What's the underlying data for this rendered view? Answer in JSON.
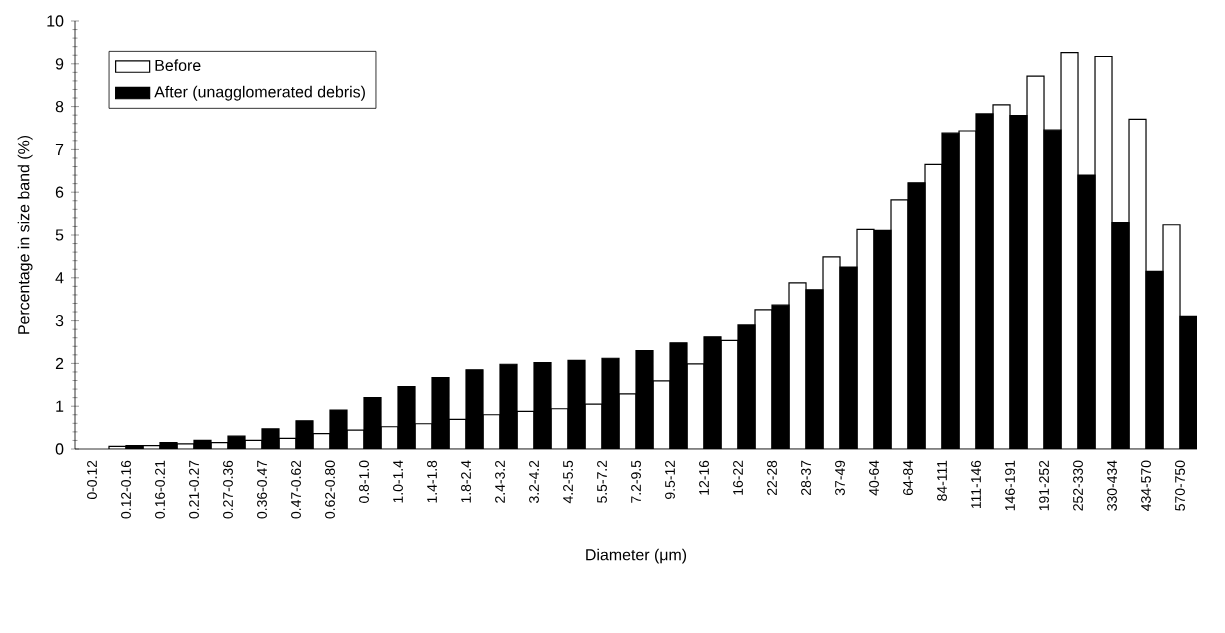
{
  "chart_data": {
    "type": "bar",
    "xlabel": "Diameter (μm)",
    "ylabel": "Percentage in size band (%)",
    "categories": [
      "0-0.12",
      "0.12-0.16",
      "0.16-0.21",
      "0.21-0.27",
      "0.27-0.36",
      "0.36-0.47",
      "0.47-0.62",
      "0.62-0.80",
      "0.8-1.0",
      "1.0-1.4",
      "1.4-1.8",
      "1.8-2.4",
      "2.4-3.2",
      "3.2-4.2",
      "4.2-5.5",
      "5.5-7.2",
      "7.2-9.5",
      "9.5-12",
      "12-16",
      "16-22",
      "22-28",
      "28-37",
      "37-49",
      "40-64",
      "64-84",
      "84-111",
      "111-146",
      "146-191",
      "191-252",
      "252-330",
      "330-434",
      "434-570",
      "570-750"
    ],
    "series": [
      {
        "name": "Before",
        "color": "#ffffff",
        "values": [
          null,
          0.06,
          0.08,
          0.12,
          0.15,
          0.2,
          0.25,
          0.36,
          0.44,
          0.52,
          0.59,
          0.69,
          0.8,
          0.88,
          0.94,
          1.05,
          1.29,
          1.59,
          1.99,
          2.54,
          3.25,
          3.88,
          4.49,
          5.13,
          5.82,
          6.65,
          7.43,
          8.04,
          8.71,
          9.26,
          9.17,
          7.7,
          5.24
        ]
      },
      {
        "name": "After (unagglomerated debris)",
        "color": "#000000",
        "values": [
          null,
          0.08,
          0.15,
          0.2,
          0.3,
          0.47,
          0.66,
          0.91,
          1.2,
          1.46,
          1.67,
          1.85,
          1.98,
          2.02,
          2.07,
          2.12,
          2.3,
          2.48,
          2.62,
          2.9,
          3.36,
          3.72,
          4.25,
          5.11,
          6.22,
          7.38,
          7.83,
          7.79,
          7.45,
          6.4,
          5.29,
          4.15,
          3.1
        ]
      }
    ],
    "ylim": [
      0,
      10
    ],
    "yticks": [
      0,
      1,
      2,
      3,
      4,
      5,
      6,
      7,
      8,
      9,
      10
    ],
    "legend": "top left"
  }
}
